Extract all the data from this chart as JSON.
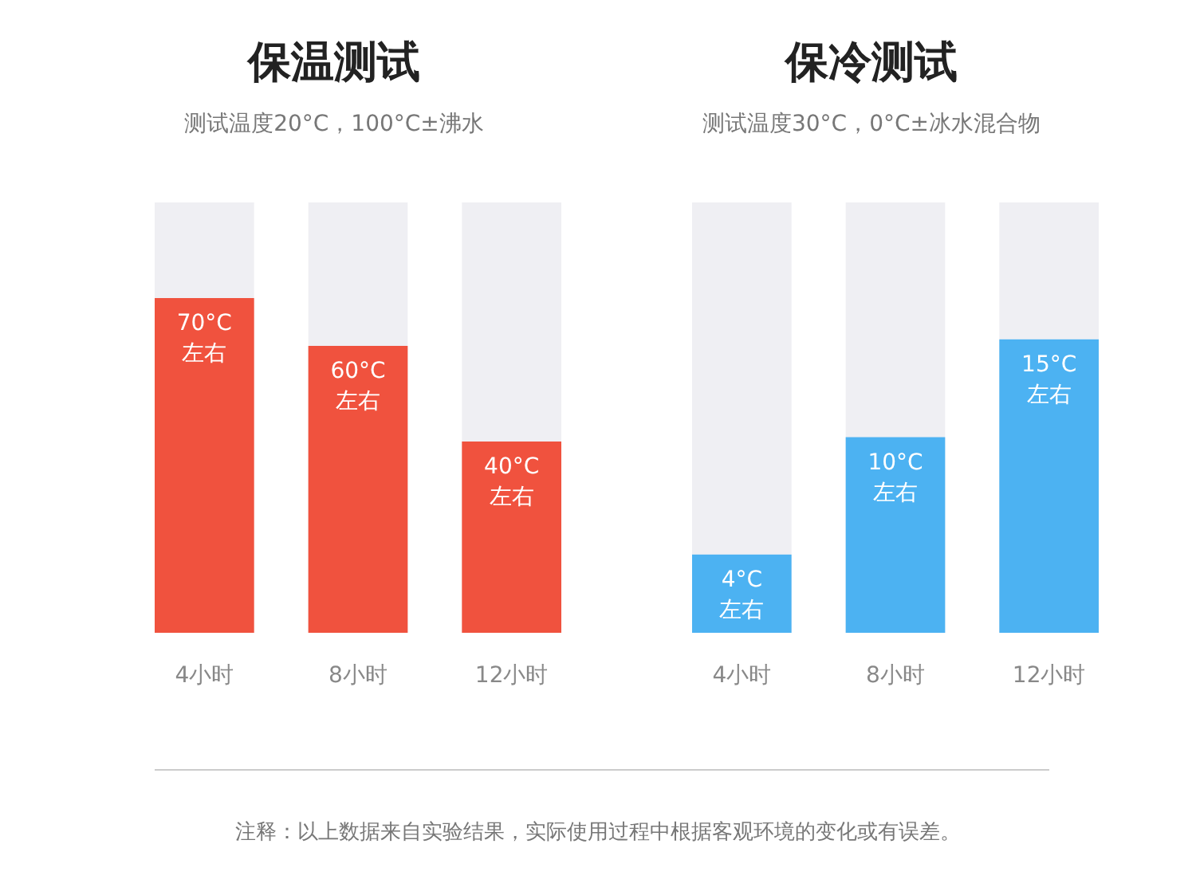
{
  "chart_data": [
    {
      "type": "bar",
      "title": "保温测试",
      "subtitle": "测试温度20°C，100°C±沸水",
      "categories": [
        "4小时",
        "8小时",
        "12小时"
      ],
      "values": [
        70,
        60,
        40
      ],
      "value_labels": [
        "70°C 左右",
        "60°C 左右",
        "40°C 左右"
      ],
      "color": "#f0523e",
      "ylim": [
        0,
        90
      ],
      "tick_labels": "x",
      "grid": false
    },
    {
      "type": "bar",
      "title": "保冷测试",
      "subtitle": "测试温度30°C，0°C±冰水混合物",
      "categories": [
        "4小时",
        "8小时",
        "12小时"
      ],
      "values": [
        4,
        10,
        15
      ],
      "value_labels": [
        "4°C 左右",
        "10°C 左右",
        "15°C 左右"
      ],
      "color": "#4cb2f2",
      "ylim": [
        0,
        22
      ],
      "tick_labels": "x",
      "grid": false,
      "annotations": [
        "注释：以上数据来自实验结果，实际使用过程中根据客观环境的变化或有误差。"
      ]
    }
  ]
}
